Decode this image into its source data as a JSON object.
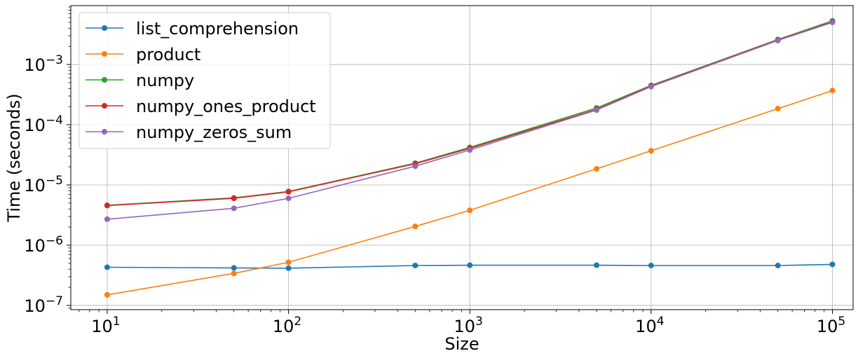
{
  "chart_data": {
    "type": "line",
    "title": "",
    "xlabel": "Size",
    "ylabel": "Time (seconds)",
    "xscale": "log",
    "yscale": "log",
    "xlim": [
      6.3,
      130000
    ],
    "ylim": [
      8.5e-08,
      0.0095
    ],
    "grid": true,
    "legend_position": "upper-left",
    "x": [
      10,
      50,
      100,
      500,
      1000,
      5000,
      10000,
      50000,
      100000
    ],
    "x_ticks": [
      {
        "value": 10,
        "base": "10",
        "exp": "1"
      },
      {
        "value": 100,
        "base": "10",
        "exp": "2"
      },
      {
        "value": 1000,
        "base": "10",
        "exp": "3"
      },
      {
        "value": 10000,
        "base": "10",
        "exp": "4"
      },
      {
        "value": 100000,
        "base": "10",
        "exp": "5"
      }
    ],
    "y_ticks": [
      {
        "value": 1e-07,
        "base": "10",
        "exp": "−7"
      },
      {
        "value": 1e-06,
        "base": "10",
        "exp": "−6"
      },
      {
        "value": 1e-05,
        "base": "10",
        "exp": "−5"
      },
      {
        "value": 0.0001,
        "base": "10",
        "exp": "−4"
      },
      {
        "value": 0.001,
        "base": "10",
        "exp": "−3"
      }
    ],
    "series": [
      {
        "name": "list_comprehension",
        "color": "#1f77b4",
        "values": [
          4.3e-07,
          4.2e-07,
          4.15e-07,
          4.6e-07,
          4.65e-07,
          4.65e-07,
          4.6e-07,
          4.6e-07,
          4.8e-07
        ]
      },
      {
        "name": "product",
        "color": "#ff7f0e",
        "values": [
          1.5e-07,
          3.4e-07,
          5.2e-07,
          2.05e-06,
          3.8e-06,
          1.85e-05,
          3.7e-05,
          0.000185,
          0.00037
        ]
      },
      {
        "name": "numpy",
        "color": "#2ca02c",
        "values": [
          4.6e-06,
          6.1e-06,
          7.8e-06,
          2.3e-05,
          4.2e-05,
          0.00019,
          0.00045,
          0.0026,
          0.0053
        ]
      },
      {
        "name": "numpy_ones_product",
        "color": "#d62728",
        "values": [
          4.55e-06,
          6e-06,
          7.7e-06,
          2.25e-05,
          4.05e-05,
          0.00018,
          0.00044,
          0.00255,
          0.0051
        ]
      },
      {
        "name": "numpy_zeros_sum",
        "color": "#9467bd",
        "values": [
          2.7e-06,
          4.1e-06,
          6e-06,
          2.05e-05,
          3.8e-05,
          0.000175,
          0.00043,
          0.0025,
          0.005
        ]
      }
    ]
  }
}
